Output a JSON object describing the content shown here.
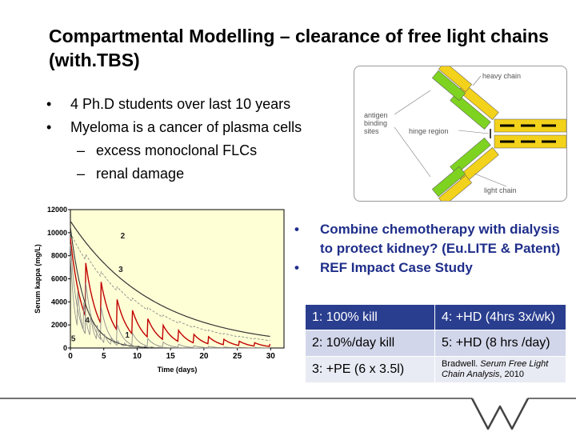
{
  "slide": {
    "title": "Compartmental Modelling – clearance of free light chains (with.TBS)",
    "bullets": [
      {
        "level": 1,
        "text": "4 Ph.D students over last 10 years"
      },
      {
        "level": 1,
        "text": "Myeloma is a cancer of plasma cells"
      },
      {
        "level": 2,
        "text": "excess monoclonal FLCs"
      },
      {
        "level": 2,
        "text": "renal damage"
      }
    ],
    "bullets2": [
      {
        "text": "Combine chemotherapy with dialysis to protect kidney? (Eu.LITE & Patent)"
      },
      {
        "text": "REF Impact Case Study"
      }
    ]
  },
  "antibody": {
    "labels": {
      "heavy": "heavy chain",
      "antigen": "antigen binding sites",
      "hinge": "hinge region",
      "light": "light chain"
    },
    "colors": {
      "heavy": "#f3d21b",
      "light": "#7ed321",
      "band": "#000000"
    }
  },
  "chart": {
    "ylabel": "Serum kappa (mg/L)",
    "xlabel": "Time (days)",
    "yticks": [
      "0",
      "2000",
      "4000",
      "6000",
      "8000",
      "10000",
      "12000"
    ],
    "xticks": [
      "0",
      "5",
      "10",
      "15",
      "20",
      "25",
      "30"
    ],
    "curve_labels": [
      "1",
      "2",
      "3",
      "4",
      "5"
    ],
    "colors": {
      "plot_bg": "#ffffd6",
      "main": "#333333",
      "red": "#c00000",
      "grey": "#8a8a8a"
    }
  },
  "table": {
    "rows": [
      [
        "1:  100% kill",
        "4: +HD (4hrs 3x/wk)"
      ],
      [
        "2:  10%/day kill",
        "5: +HD (8 hrs /day)"
      ],
      [
        "3:  +PE (6 x 3.5l)",
        ""
      ]
    ],
    "citation": {
      "author": "Bradwell. ",
      "title": "Serum Free Light Chain Analysis",
      "year": ", 2010"
    },
    "colors": {
      "header": "#2a3e8f",
      "row2": "#d2d6ea",
      "row3": "#e9ebf4"
    }
  }
}
